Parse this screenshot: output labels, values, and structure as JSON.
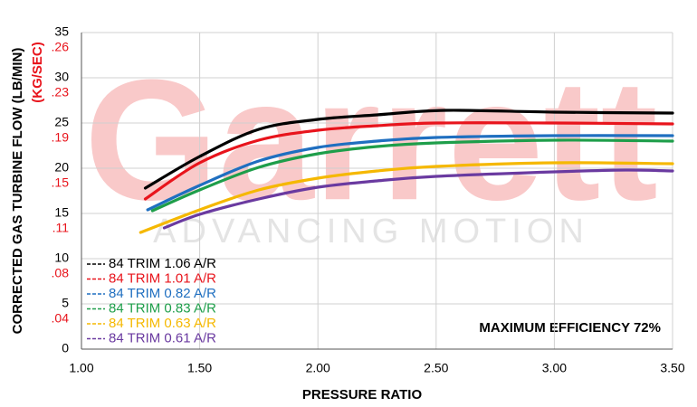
{
  "chart_data": {
    "type": "line",
    "xlabel": "PRESSURE RATIO",
    "ylabel": "CORRECTED GAS TURBINE FLOW (LB/MIN)",
    "y2label": "(KG/SEC)",
    "annotation": "MAXIMUM EFFICIENCY 72%",
    "watermark": "Garrett",
    "watermark_subtitle": "ADVANCING MOTION",
    "xlim": [
      1,
      3.5
    ],
    "xticks": [
      {
        "value": 1,
        "label": "1.00"
      },
      {
        "value": 1.5,
        "label": "1.50"
      },
      {
        "value": 2,
        "label": "2.00"
      },
      {
        "value": 2.5,
        "label": "2.50"
      },
      {
        "value": 3,
        "label": "3.00"
      },
      {
        "value": 3.5,
        "label": "3.50"
      }
    ],
    "ylim": [
      0,
      35
    ],
    "yticks": [
      0,
      5,
      10,
      15,
      20,
      25,
      30,
      35
    ],
    "y2lim": [
      0,
      0.2646
    ],
    "y2ticks": [
      {
        "value": 0.0378,
        "label": ".04"
      },
      {
        "value": 0.0756,
        "label": ".08"
      },
      {
        "value": 0.1134,
        "label": ".11"
      },
      {
        "value": 0.1512,
        "label": ".15"
      },
      {
        "value": 0.189,
        "label": ".19"
      },
      {
        "value": 0.2268,
        "label": ".23"
      },
      {
        "value": 0.2646,
        "label": ".26"
      }
    ],
    "y2color": "#e8141c",
    "grid": true,
    "legend": "lower left",
    "series": [
      {
        "name": "84 TRIM 1.06 A/R",
        "color": "#000000",
        "x": [
          1.27,
          1.5,
          1.75,
          2.0,
          2.25,
          2.54,
          3.0,
          3.5
        ],
        "values": [
          17.8,
          21.3,
          24.3,
          25.4,
          25.9,
          26.4,
          26.2,
          26.1
        ]
      },
      {
        "name": "84 TRIM 1.01 A/R",
        "color": "#e8141c",
        "x": [
          1.27,
          1.5,
          1.75,
          2.0,
          2.25,
          2.5,
          3.0,
          3.5
        ],
        "values": [
          16.6,
          20.6,
          23.1,
          24.2,
          24.7,
          25.0,
          25.0,
          24.9
        ]
      },
      {
        "name": "84 TRIM 0.82 A/R",
        "color": "#1f6fc0",
        "x": [
          1.28,
          1.5,
          1.75,
          2.0,
          2.25,
          2.5,
          3.0,
          3.5
        ],
        "values": [
          15.4,
          18.1,
          20.8,
          22.3,
          23.0,
          23.4,
          23.6,
          23.6
        ]
      },
      {
        "name": "84 TRIM 0.83 A/R",
        "color": "#1e9e4a",
        "x": [
          1.3,
          1.5,
          1.75,
          2.0,
          2.25,
          2.5,
          3.0,
          3.5
        ],
        "values": [
          15.3,
          17.6,
          20.1,
          21.6,
          22.4,
          22.8,
          23.1,
          23.0
        ]
      },
      {
        "name": "84 TRIM 0.63 A/R",
        "color": "#f5b800",
        "x": [
          1.25,
          1.5,
          1.75,
          2.0,
          2.25,
          2.5,
          3.0,
          3.5
        ],
        "values": [
          12.9,
          15.4,
          17.6,
          18.9,
          19.7,
          20.2,
          20.6,
          20.5
        ]
      },
      {
        "name": "84 TRIM 0.61 A/R",
        "color": "#6a3aa0",
        "x": [
          1.35,
          1.5,
          1.75,
          2.0,
          2.25,
          2.5,
          3.0,
          3.3,
          3.5
        ],
        "values": [
          13.4,
          14.9,
          16.6,
          17.9,
          18.6,
          19.1,
          19.6,
          19.8,
          19.7
        ]
      }
    ]
  }
}
